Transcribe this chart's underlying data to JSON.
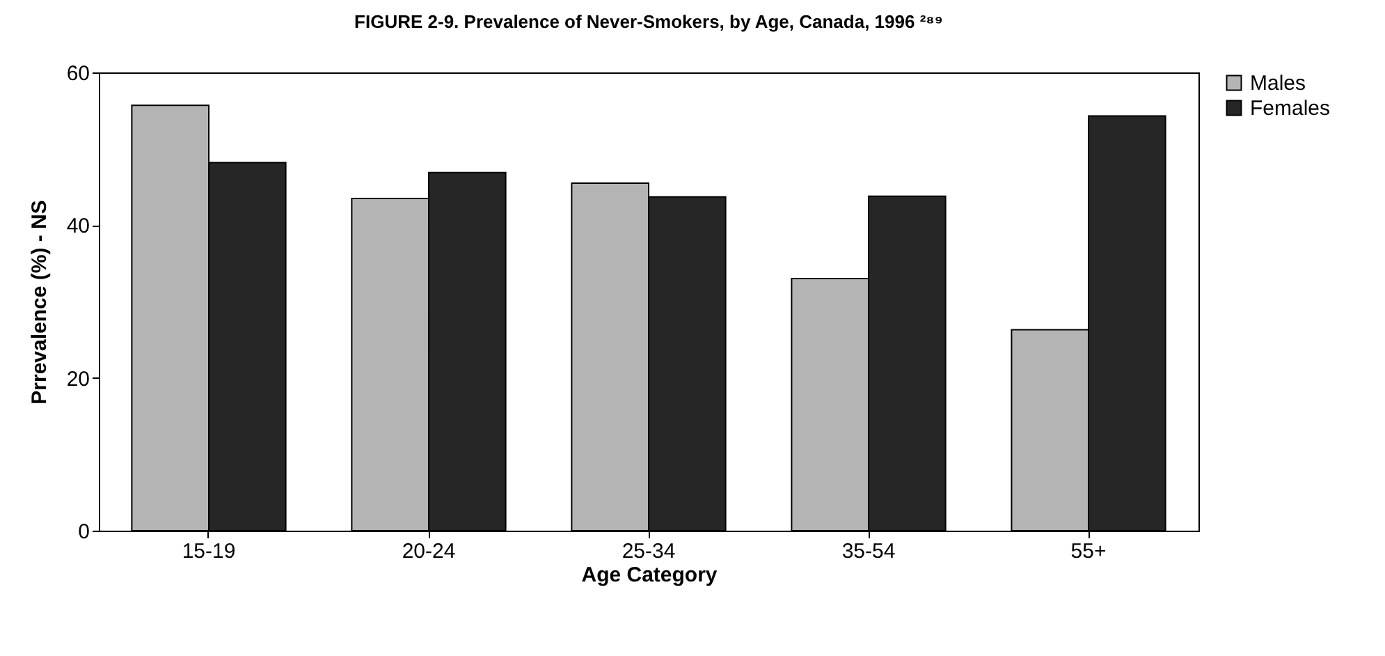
{
  "chart_data": {
    "type": "bar",
    "title": "FIGURE 2-9.  Prevalence of Never-Smokers, by Age, Canada, 1996 ²⁸⁹",
    "xlabel": "Age Category",
    "ylabel": "Prrevalence (%) - NS",
    "categories": [
      "15-19",
      "20-24",
      "25-34",
      "35-54",
      "55+"
    ],
    "series": [
      {
        "name": "Males",
        "color": "#b4b4b4",
        "values": [
          55.7,
          43.5,
          45.5,
          33,
          26.3
        ]
      },
      {
        "name": "Females",
        "color": "#262626",
        "values": [
          48.2,
          46.9,
          43.7,
          43.8,
          54.3
        ]
      }
    ],
    "ylim": [
      0,
      60
    ],
    "yticks": [
      0,
      20,
      40,
      60
    ],
    "grid": false,
    "legend": "right"
  }
}
